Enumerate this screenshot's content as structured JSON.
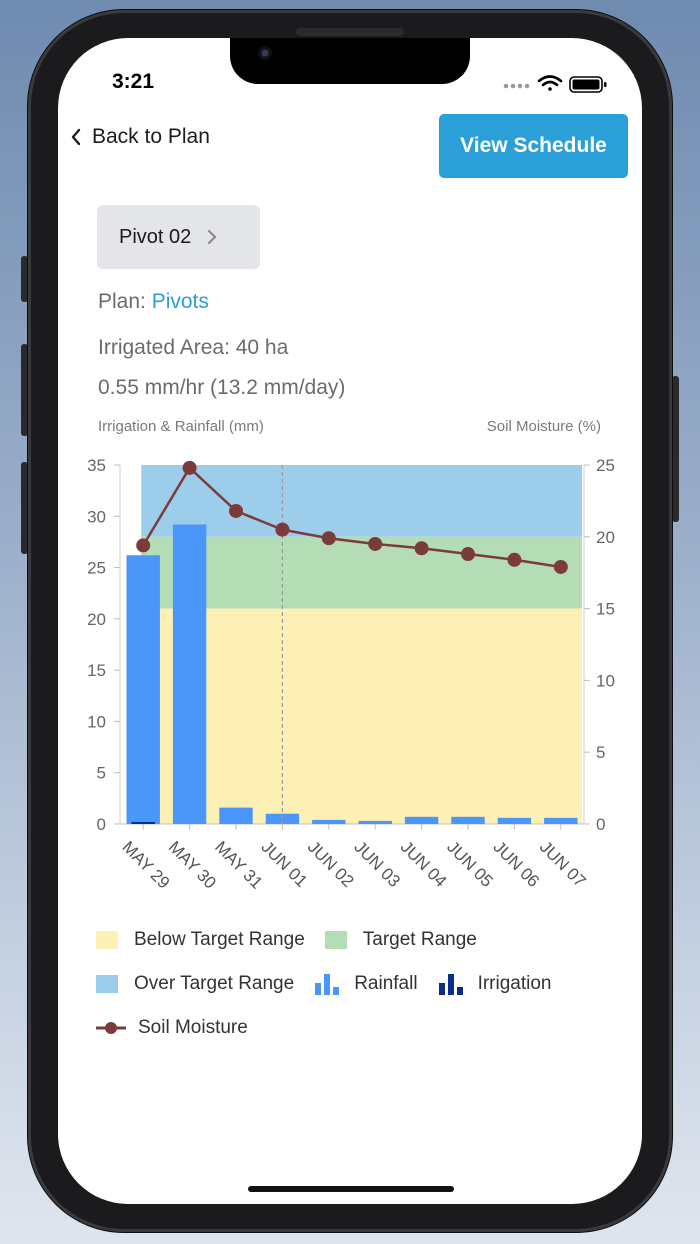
{
  "status": {
    "time": "3:21"
  },
  "header": {
    "back_label": "Back to Plan",
    "view_schedule_label": "View Schedule"
  },
  "pivot": {
    "name": "Pivot 02"
  },
  "info": {
    "plan_label": "Plan: ",
    "plan_link": "Pivots",
    "area": "Irrigated Area: 40 ha",
    "rate": "0.55 mm/hr (13.2 mm/day)"
  },
  "colors": {
    "below": "#fdf0b4",
    "target": "#b4ddb5",
    "over": "#9ccdea",
    "rainfall": "#4a97f9",
    "irrigation": "#0a2d8a",
    "soil": "#7b3b3b",
    "accent": "#2a9fd8"
  },
  "chart_data": {
    "type": "bar+line",
    "left_axis_label": "Irrigation & Rainfall (mm)",
    "right_axis_label": "Soil Moisture (%)",
    "categories": [
      "MAY 29",
      "MAY 30",
      "MAY 31",
      "JUN 01",
      "JUN 02",
      "JUN 03",
      "JUN 04",
      "JUN 05",
      "JUN 06",
      "JUN 07"
    ],
    "left_ylim": [
      0,
      35
    ],
    "left_ticks": [
      "0",
      "5",
      "10",
      "15",
      "20",
      "25",
      "30",
      "35"
    ],
    "right_ylim": [
      0,
      25
    ],
    "right_ticks": [
      "0",
      "5",
      "10",
      "15",
      "20",
      "25"
    ],
    "rainfall": [
      26.2,
      29.2,
      1.6,
      1.0,
      0.4,
      0.3,
      0.7,
      0.7,
      0.6,
      0.6
    ],
    "irrigation": [
      0.2,
      0,
      0,
      0,
      0,
      0,
      0,
      0,
      0,
      0
    ],
    "soil_moisture": [
      19.4,
      24.8,
      21.8,
      20.5,
      19.9,
      19.5,
      19.2,
      18.8,
      18.4,
      17.9
    ],
    "target_range_pct": [
      15,
      20
    ],
    "current_day": "JUN 01"
  },
  "legend": {
    "below": "Below Target Range",
    "target": "Target Range",
    "over": "Over Target Range",
    "rainfall": "Rainfall",
    "irrigation": "Irrigation",
    "soil": "Soil Moisture"
  }
}
